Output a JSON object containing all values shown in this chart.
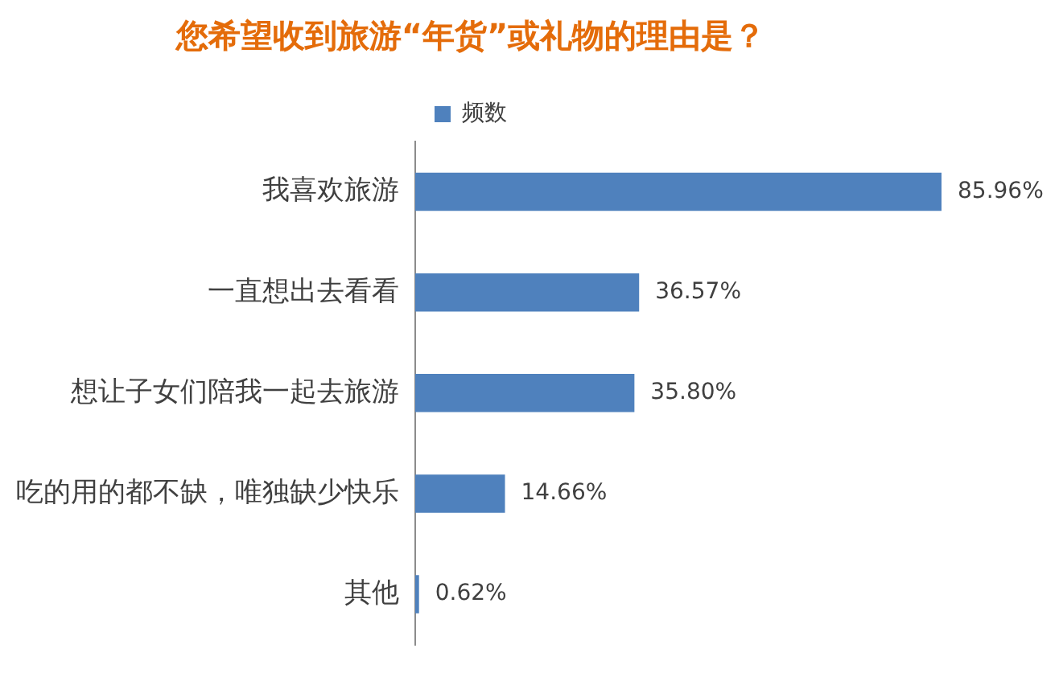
{
  "chart_data": {
    "type": "bar",
    "orientation": "horizontal",
    "title": "您希望收到旅游“年货”或礼物的理由是？",
    "categories": [
      "我喜欢旅游",
      "一直想出去看看",
      "想让子女们陪我一起去旅游",
      "吃的用的都不缺，唯独缺少快乐",
      "其他"
    ],
    "series": [
      {
        "name": "频数",
        "color": "#4f81bd",
        "values": [
          85.96,
          36.57,
          35.8,
          14.66,
          0.62
        ],
        "value_labels": [
          "85.96%",
          "36.57%",
          "35.80%",
          "14.66%",
          "0.62%"
        ]
      }
    ],
    "legend": "top",
    "grid": false,
    "tick_labels": "y"
  }
}
